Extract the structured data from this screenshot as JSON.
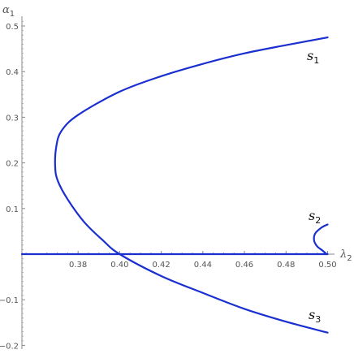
{
  "chart_data": {
    "type": "line",
    "xlabel": "λ",
    "xlabel_sub": "2",
    "ylabel": "α",
    "ylabel_sub": "1",
    "xlim": [
      0.353,
      0.5
    ],
    "ylim": [
      -0.21,
      0.51
    ],
    "x_ticks": [
      0.38,
      0.4,
      0.42,
      0.44,
      0.46,
      0.48,
      0.5
    ],
    "x_tick_labels": [
      "0.38",
      "0.40",
      "0.42",
      "0.44",
      "0.46",
      "0.48",
      "0.50"
    ],
    "y_ticks": [
      -0.2,
      -0.1,
      0.1,
      0.2,
      0.3,
      0.4,
      0.5
    ],
    "y_tick_labels": [
      "-0.2",
      "-0.1",
      "0.1",
      "0.2",
      "0.3",
      "0.4",
      "0.5"
    ],
    "grid": false,
    "line_color": "#1a2fd0",
    "series": [
      {
        "name": "s",
        "name_sub": "1",
        "points": [
          [
            0.5,
            0.475
          ],
          [
            0.48,
            0.458
          ],
          [
            0.46,
            0.44
          ],
          [
            0.44,
            0.417
          ],
          [
            0.42,
            0.39
          ],
          [
            0.4,
            0.356
          ],
          [
            0.38,
            0.305
          ],
          [
            0.372,
            0.27
          ],
          [
            0.3695,
            0.235
          ],
          [
            0.369,
            0.19
          ],
          [
            0.3703,
            0.16
          ],
          [
            0.375,
            0.12
          ],
          [
            0.383,
            0.07
          ],
          [
            0.392,
            0.03
          ],
          [
            0.4,
            0.0
          ],
          [
            0.42,
            -0.048
          ],
          [
            0.44,
            -0.085
          ],
          [
            0.46,
            -0.12
          ],
          [
            0.48,
            -0.148
          ],
          [
            0.5,
            -0.172
          ]
        ]
      },
      {
        "name": "s",
        "name_sub": "2",
        "points": [
          [
            0.5,
            0.065
          ],
          [
            0.497,
            0.058
          ],
          [
            0.494,
            0.045
          ],
          [
            0.4935,
            0.03
          ],
          [
            0.495,
            0.017
          ],
          [
            0.4975,
            0.008
          ],
          [
            0.4995,
            0.0
          ]
        ]
      },
      {
        "name": "s",
        "name_sub": "3",
        "points": [
          [
            0.353,
            0.0
          ],
          [
            0.5,
            0.0
          ]
        ]
      }
    ]
  }
}
